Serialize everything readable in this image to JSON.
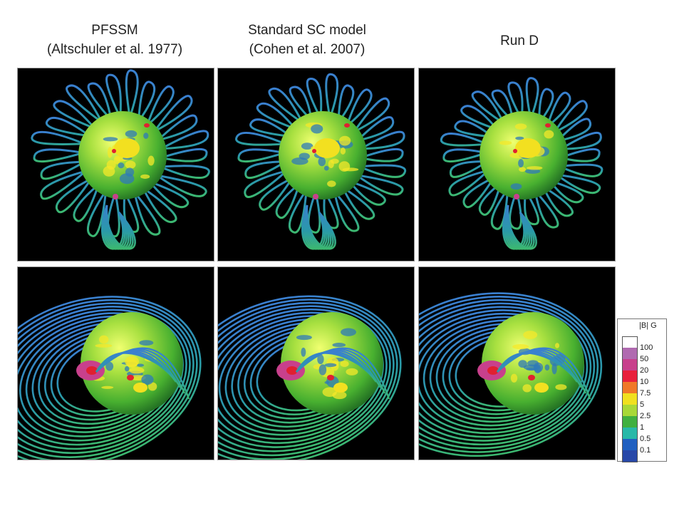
{
  "headers": {
    "col1": [
      "PFSSM",
      "(Altschuler et al. 1977)"
    ],
    "col2": [
      "Standard SC model",
      "(Cohen et al. 2007)"
    ],
    "col3": [
      "Run D"
    ]
  },
  "panels": [
    {
      "row": "top",
      "col": 1,
      "view": "polar"
    },
    {
      "row": "top",
      "col": 2,
      "view": "polar"
    },
    {
      "row": "top",
      "col": 3,
      "view": "polar"
    },
    {
      "row": "bottom",
      "col": 1,
      "view": "side"
    },
    {
      "row": "bottom",
      "col": 2,
      "view": "side"
    },
    {
      "row": "bottom",
      "col": 3,
      "view": "side"
    }
  ],
  "legend": {
    "title": "|B| G",
    "levels": [
      "100",
      "50",
      "20",
      "10",
      "7.5",
      "5",
      "2.5",
      "1",
      "0.5",
      "0.1"
    ],
    "colors": [
      "#ffffff",
      "#b06ab0",
      "#c8408c",
      "#e8203c",
      "#f07828",
      "#f0e020",
      "#a8d838",
      "#40b040",
      "#28b8a8",
      "#2060c0",
      "#2848a8"
    ]
  }
}
